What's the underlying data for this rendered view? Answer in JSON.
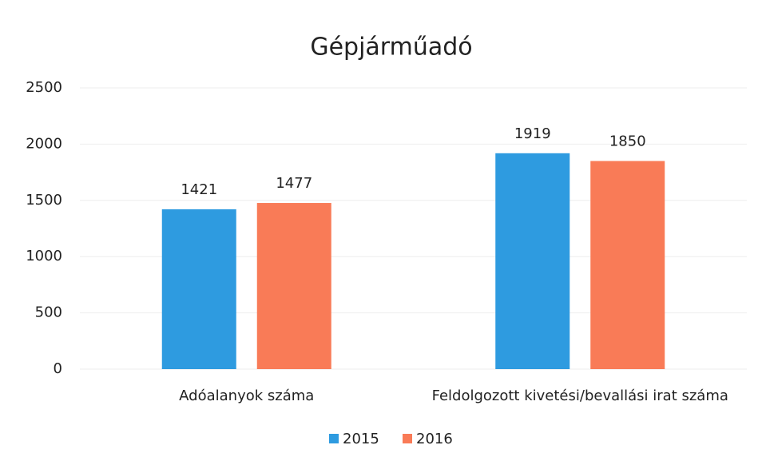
{
  "chart_data": {
    "type": "bar",
    "title": "Gépjárműadó",
    "categories": [
      "Adóalanyok száma",
      "Feldolgozott kivetési/bevallási irat száma"
    ],
    "series": [
      {
        "name": "2015",
        "color": "#2e9be0",
        "values": [
          1421,
          1919
        ]
      },
      {
        "name": "2016",
        "color": "#f97b57",
        "values": [
          1477,
          1850
        ]
      }
    ],
    "ylim": [
      0,
      2500
    ],
    "yticks": [
      0,
      500,
      1000,
      1500,
      2000,
      2500
    ],
    "grid": true,
    "legend": "bottom"
  }
}
